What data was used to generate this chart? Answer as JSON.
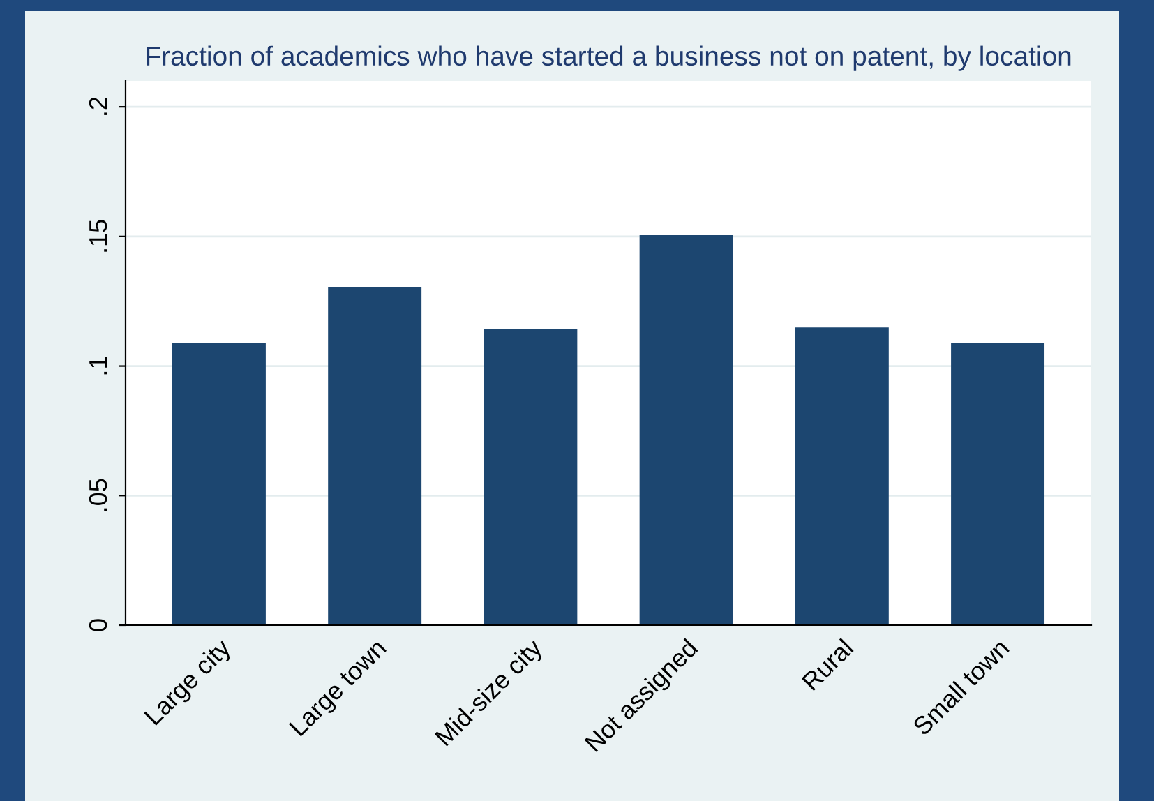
{
  "chart_data": {
    "type": "bar",
    "title": "Fraction of academics who have started a business not on patent, by location",
    "categories": [
      "Large city",
      "Large town",
      "Mid-size city",
      "Not assigned",
      "Rural",
      "Small town"
    ],
    "values": [
      0.109,
      0.1306,
      0.1144,
      0.1505,
      0.1149,
      0.109
    ],
    "color": "#1c4670",
    "ylim": [
      0,
      0.21
    ],
    "yticks": [
      {
        "value": 0,
        "label": "0"
      },
      {
        "value": 0.05,
        "label": ".05"
      },
      {
        "value": 0.1,
        "label": ".1"
      },
      {
        "value": 0.15,
        "label": ".15"
      },
      {
        "value": 0.2,
        "label": ".2"
      }
    ],
    "grid": "y"
  }
}
